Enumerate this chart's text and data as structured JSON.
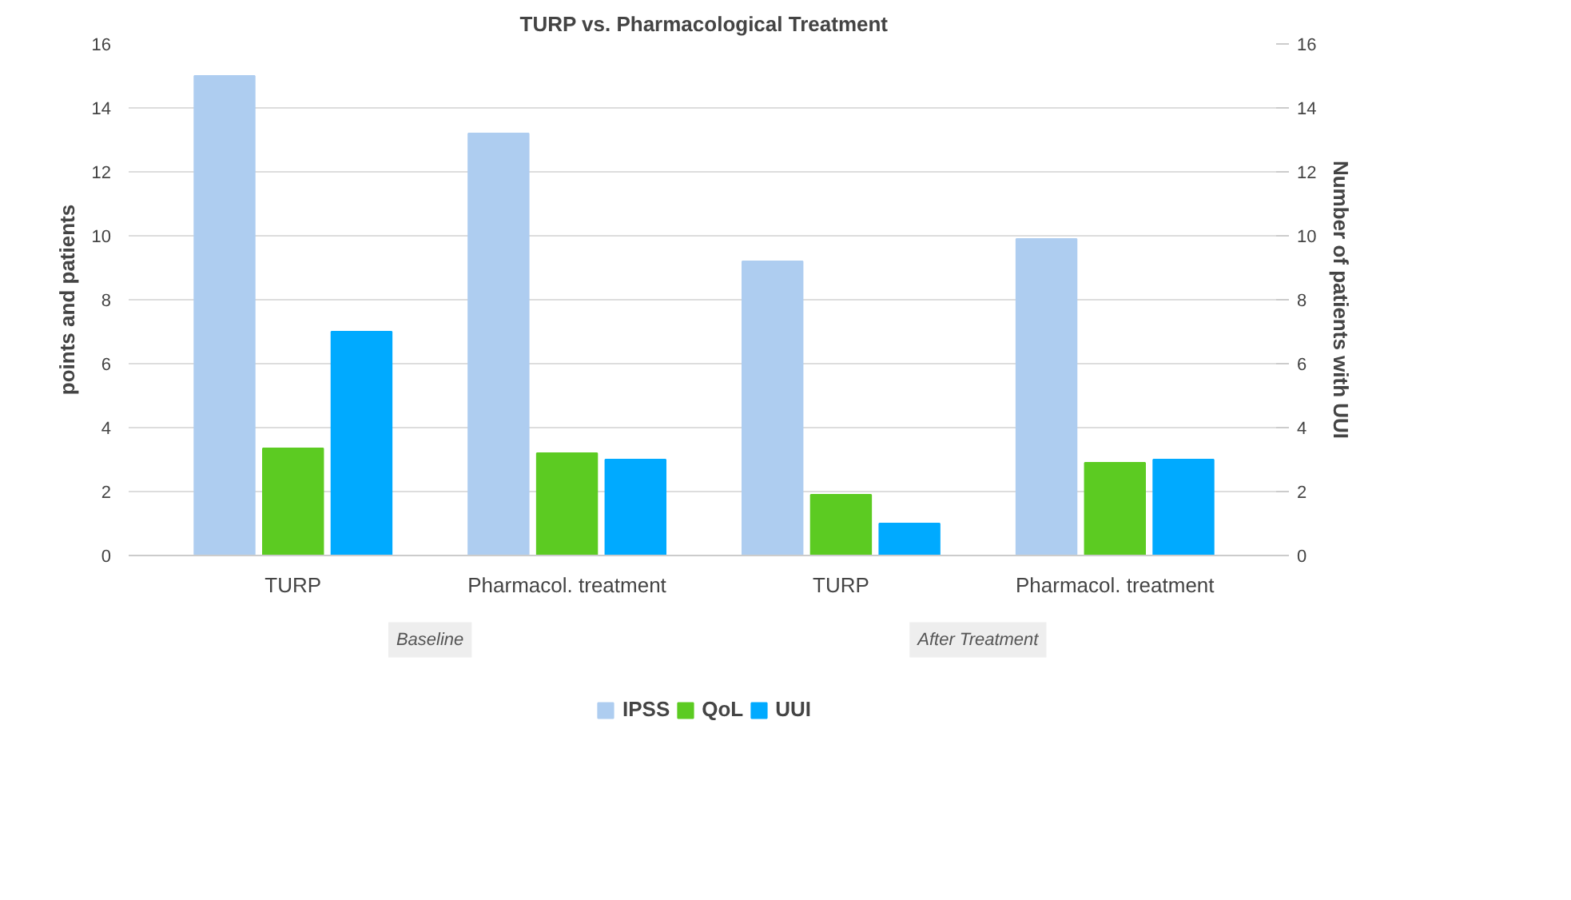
{
  "chart_data": {
    "type": "bar",
    "title": "TURP vs. Pharmacological Treatment",
    "ylabel": "points and patients",
    "y2label": "Number of patients with UUI",
    "categories": [
      "TURP",
      "Pharmacol. treatment",
      "TURP",
      "Pharmacol. treatment"
    ],
    "series": [
      {
        "name": "IPSS",
        "color": "#aecdf0",
        "values": [
          15.0,
          13.2,
          9.2,
          9.9
        ]
      },
      {
        "name": "QoL",
        "color": "#5ccb22",
        "values": [
          3.35,
          3.2,
          1.9,
          2.9
        ]
      },
      {
        "name": "UUI",
        "color": "#00aaff",
        "values": [
          7.0,
          3.0,
          1.0,
          3.0
        ],
        "axis": "y2"
      }
    ],
    "ylim": [
      0,
      16
    ],
    "yticks": [
      0,
      2,
      4,
      6,
      8,
      10,
      12,
      14,
      16
    ],
    "y2lim": [
      0,
      16
    ],
    "y2ticks": [
      0,
      2,
      4,
      6,
      8,
      10,
      12,
      14,
      16
    ],
    "annotations": [
      "Baseline",
      "After Treatment"
    ],
    "grid": "y",
    "legend": "bottom"
  }
}
